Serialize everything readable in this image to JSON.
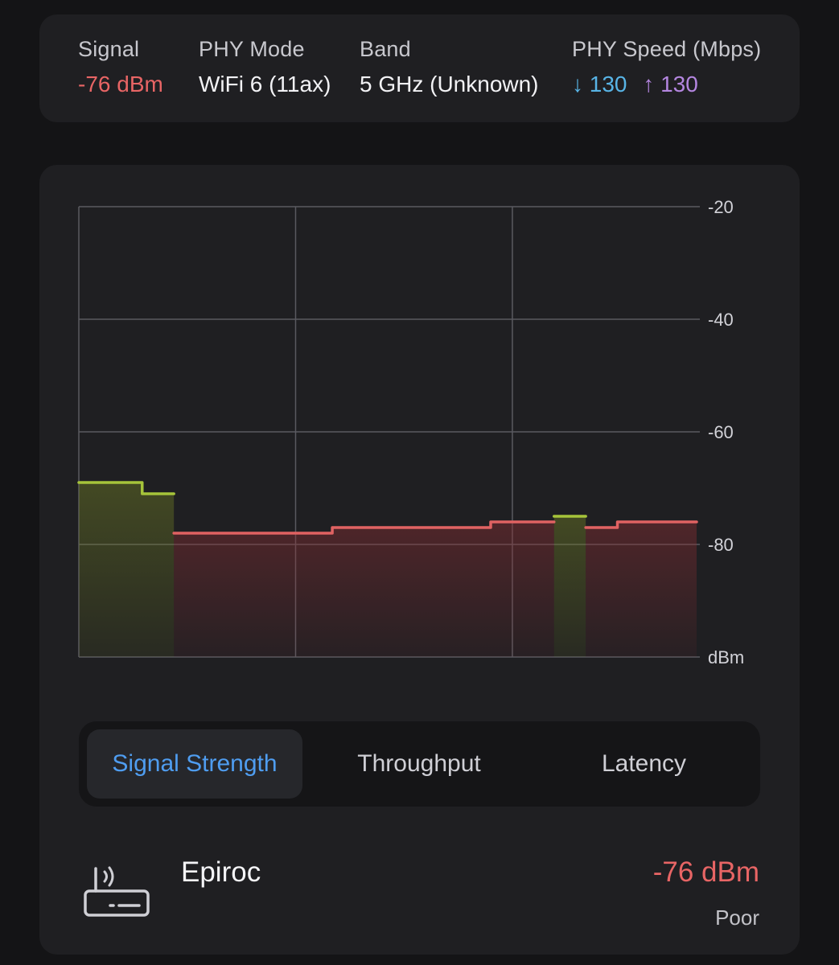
{
  "info": {
    "signal": {
      "label": "Signal",
      "value": "-76 dBm"
    },
    "phy_mode": {
      "label": "PHY Mode",
      "value": "WiFi 6 (11ax)"
    },
    "band": {
      "label": "Band",
      "value": "5 GHz (Unknown)"
    },
    "phy_speed": {
      "label": "PHY Speed (Mbps)",
      "down_arrow": "↓",
      "down": "130",
      "up_arrow": "↑",
      "up": "130"
    }
  },
  "chart_data": {
    "type": "area",
    "ylabel": "dBm",
    "y_ticks": [
      "-20",
      "-40",
      "-60",
      "-80"
    ],
    "ylim": [
      -100,
      -20
    ],
    "grid": true,
    "x": [
      0,
      1,
      2,
      3,
      4,
      5,
      6,
      7,
      8,
      9,
      10,
      11,
      12,
      13,
      14,
      15,
      16,
      17,
      18,
      19,
      20,
      21,
      22,
      23,
      24,
      25,
      26,
      27,
      28,
      29,
      30,
      31,
      32,
      33,
      34,
      35,
      36,
      37,
      38,
      39
    ],
    "series": [
      {
        "values": [
          -69,
          -69,
          -69,
          -69,
          -71,
          -71,
          -78,
          -78,
          -78,
          -78,
          -78,
          -78,
          -78,
          -78,
          -78,
          -78,
          -77,
          -77,
          -77,
          -77,
          -77,
          -77,
          -77,
          -77,
          -77,
          -77,
          -76,
          -76,
          -76,
          -76,
          -75,
          -75,
          -77,
          -77,
          -76,
          -76,
          -76,
          -76,
          -76,
          -76
        ]
      }
    ],
    "colors": {
      "good": "#a6c43a",
      "poor": "#e06262"
    },
    "threshold": -76
  },
  "tabs": [
    {
      "label": "Signal Strength",
      "active": true
    },
    {
      "label": "Throughput",
      "active": false
    },
    {
      "label": "Latency",
      "active": false
    }
  ],
  "network": {
    "icon": "router-icon",
    "name": "Epiroc",
    "signal": "-76 dBm",
    "quality": "Poor"
  }
}
